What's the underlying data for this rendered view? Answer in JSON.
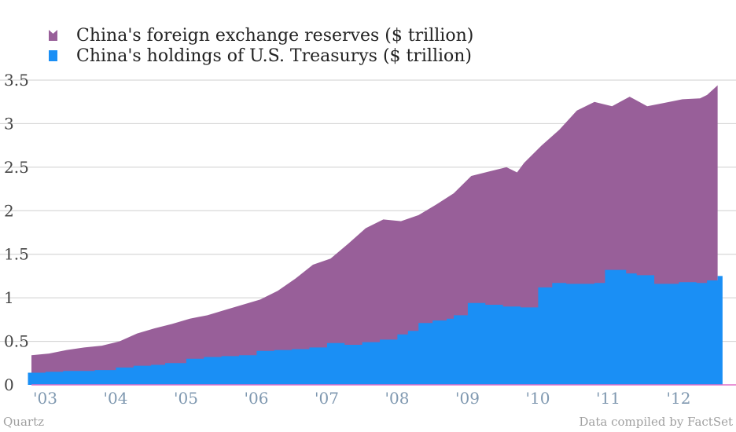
{
  "chart_data": {
    "type": "area",
    "title": "",
    "xlabel": "",
    "ylabel": "",
    "ylim": [
      0,
      3.5
    ],
    "yticks": [
      "0",
      "0.5",
      "1",
      "1.5",
      "2",
      "2.5",
      "3",
      "3.5"
    ],
    "xticks": [
      "'03",
      "'04",
      "'05",
      "'06",
      "'07",
      "'08",
      "'09",
      "'10",
      "'11",
      "'12"
    ],
    "xrange": [
      2003,
      2013
    ],
    "grid": true,
    "legend_position": "top-left",
    "series": [
      {
        "name": "China's foreign exchange reserves ($ trillion)",
        "color": "#985f99",
        "step": false,
        "x": [
          2003.0,
          2003.25,
          2003.5,
          2003.75,
          2004.0,
          2004.25,
          2004.5,
          2004.75,
          2005.0,
          2005.25,
          2005.5,
          2005.75,
          2006.0,
          2006.25,
          2006.5,
          2006.75,
          2007.0,
          2007.25,
          2007.5,
          2007.75,
          2008.0,
          2008.25,
          2008.5,
          2008.75,
          2009.0,
          2009.25,
          2009.5,
          2009.75,
          2009.9,
          2010.0,
          2010.25,
          2010.5,
          2010.75,
          2011.0,
          2011.25,
          2011.5,
          2011.75,
          2012.0,
          2012.25,
          2012.5,
          2012.6,
          2012.75
        ],
        "values": [
          0.34,
          0.36,
          0.4,
          0.43,
          0.45,
          0.5,
          0.59,
          0.65,
          0.7,
          0.76,
          0.8,
          0.86,
          0.92,
          0.98,
          1.08,
          1.22,
          1.38,
          1.45,
          1.62,
          1.8,
          1.9,
          1.88,
          1.95,
          2.07,
          2.2,
          2.4,
          2.45,
          2.5,
          2.44,
          2.55,
          2.75,
          2.93,
          3.15,
          3.25,
          3.2,
          3.31,
          3.2,
          3.24,
          3.28,
          3.29,
          3.33,
          3.44
        ]
      },
      {
        "name": "China's holdings of U.S. Treasurys ($ trillion)",
        "color": "#1a8ff5",
        "step": true,
        "x": [
          2002.95,
          2003.2,
          2003.45,
          2003.7,
          2003.9,
          2004.2,
          2004.45,
          2004.7,
          2004.9,
          2005.2,
          2005.45,
          2005.7,
          2005.95,
          2006.2,
          2006.45,
          2006.7,
          2006.95,
          2007.2,
          2007.45,
          2007.7,
          2007.95,
          2008.2,
          2008.35,
          2008.5,
          2008.7,
          2008.9,
          2009.0,
          2009.2,
          2009.45,
          2009.7,
          2009.95,
          2010.2,
          2010.4,
          2010.6,
          2010.85,
          2011.0,
          2011.15,
          2011.45,
          2011.6,
          2011.85,
          2012.2,
          2012.45,
          2012.6,
          2012.75
        ],
        "values": [
          0.14,
          0.15,
          0.16,
          0.16,
          0.17,
          0.2,
          0.22,
          0.23,
          0.25,
          0.3,
          0.32,
          0.33,
          0.34,
          0.39,
          0.4,
          0.41,
          0.43,
          0.48,
          0.46,
          0.49,
          0.52,
          0.58,
          0.62,
          0.71,
          0.74,
          0.76,
          0.8,
          0.94,
          0.92,
          0.9,
          0.89,
          1.12,
          1.17,
          1.16,
          1.16,
          1.17,
          1.32,
          1.28,
          1.26,
          1.16,
          1.18,
          1.17,
          1.2,
          1.25
        ]
      }
    ]
  },
  "footer": {
    "left": "Quartz",
    "right": "Data compiled by FactSet"
  }
}
